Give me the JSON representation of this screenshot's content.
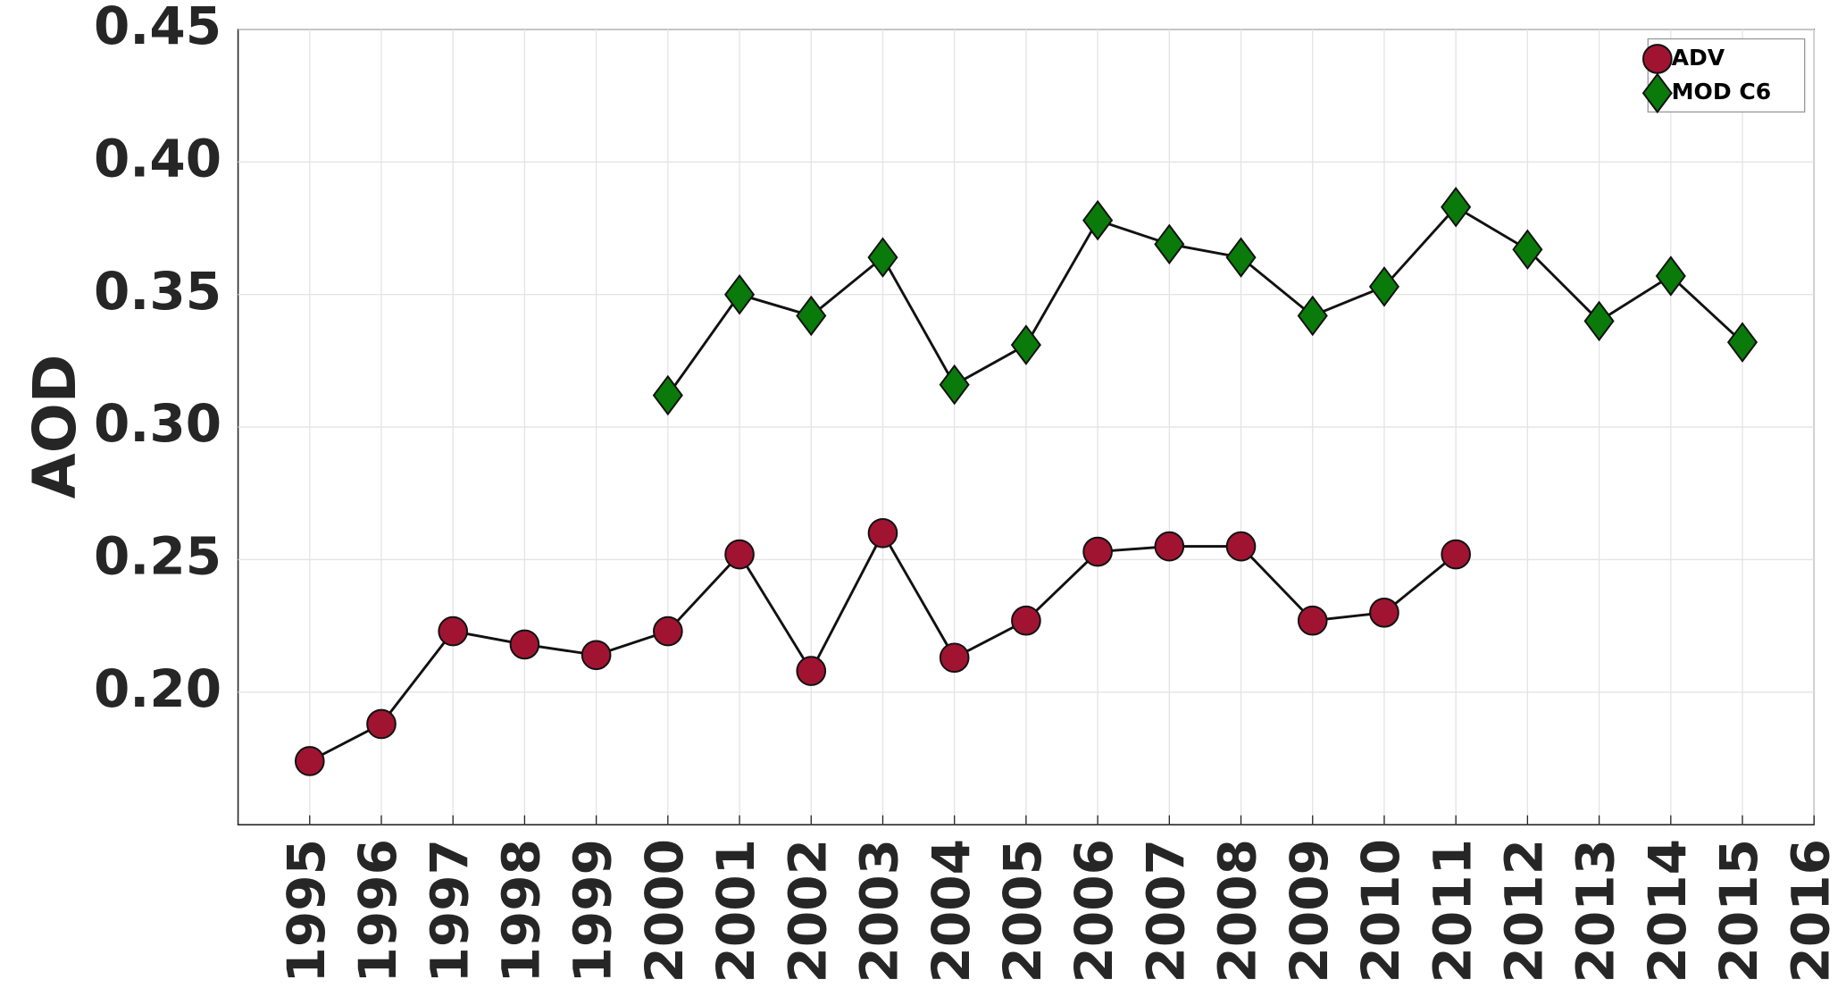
{
  "chart_data": {
    "type": "line",
    "ylabel": "AOD",
    "x": [
      1995,
      1996,
      1997,
      1998,
      1999,
      2000,
      2001,
      2002,
      2003,
      2004,
      2005,
      2006,
      2007,
      2008,
      2009,
      2010,
      2011,
      2012,
      2013,
      2014,
      2015
    ],
    "series": [
      {
        "name": "ADV",
        "color": "#a01432",
        "marker": "circle",
        "values": [
          0.174,
          0.188,
          0.223,
          0.218,
          0.214,
          0.223,
          0.252,
          0.208,
          0.26,
          0.213,
          0.227,
          0.253,
          0.255,
          0.255,
          0.227,
          0.23,
          0.252,
          null,
          null,
          null,
          null
        ]
      },
      {
        "name": "MOD C6",
        "color": "#0a7a0a",
        "marker": "diamond",
        "values": [
          null,
          null,
          null,
          null,
          null,
          0.312,
          0.35,
          0.342,
          0.364,
          0.316,
          0.331,
          0.378,
          0.369,
          0.364,
          0.342,
          0.353,
          0.383,
          0.367,
          0.34,
          0.357,
          0.332
        ]
      }
    ],
    "xlim": [
      1994,
      2016
    ],
    "xticks": [
      1995,
      1996,
      1997,
      1998,
      1999,
      2000,
      2001,
      2002,
      2003,
      2004,
      2005,
      2006,
      2007,
      2008,
      2009,
      2010,
      2011,
      2012,
      2013,
      2014,
      2015,
      2016
    ],
    "ylim": [
      0.15,
      0.45
    ],
    "yticks": [
      {
        "value": 0.2,
        "label": "0.20"
      },
      0.25,
      {
        "value": 0.3,
        "label": "0.30"
      },
      0.35,
      {
        "value": 0.4,
        "label": "0.40"
      },
      0.45
    ],
    "grid": true,
    "legend": "upper right"
  }
}
